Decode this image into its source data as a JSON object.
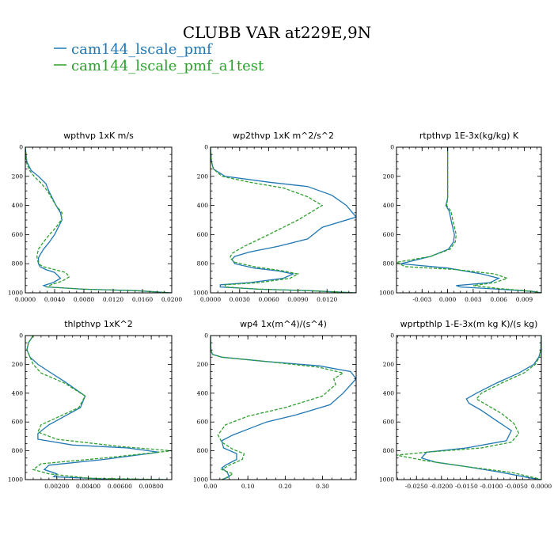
{
  "title": "CLUBB VAR at229E,9N",
  "legend": [
    {
      "label": "cam144_lscale_pmf",
      "color": "#1f77b4",
      "dash": "none"
    },
    {
      "label": "cam144_lscale_pmf_a1test",
      "color": "#2ca02c",
      "dash": "4,2"
    }
  ],
  "chart_data": [
    {
      "type": "line",
      "title": "wpthvp  1xK m/s",
      "xlim": [
        0,
        0.02
      ],
      "ylim": [
        1000,
        0
      ],
      "xticks": [
        0,
        0.004,
        0.008,
        0.012,
        0.016,
        0.02
      ],
      "xticklabels": [
        "0.0000",
        "0.0040",
        "0.0080",
        "0.0120",
        "0.0160",
        "0.0200"
      ],
      "yticks": [
        0,
        200,
        400,
        600,
        800,
        1000
      ],
      "yticklabels": [
        "0",
        "200",
        "400",
        "600",
        "800",
        "1000"
      ],
      "series": [
        {
          "name": "cam144_lscale_pmf",
          "x": [
            0,
            0.0002,
            0.0008,
            0.0018,
            0.0028,
            0.0032,
            0.0042,
            0.0048,
            0.005,
            0.0045,
            0.004,
            0.0033,
            0.0025,
            0.002,
            0.0018,
            0.0018,
            0.002,
            0.0028,
            0.004,
            0.0048,
            0.0038,
            0.0025,
            0.003,
            0.008,
            0.015,
            0.02
          ],
          "y": [
            0,
            100,
            160,
            200,
            250,
            300,
            400,
            450,
            500,
            550,
            600,
            650,
            700,
            740,
            760,
            800,
            820,
            840,
            860,
            900,
            930,
            950,
            960,
            975,
            985,
            1000
          ]
        },
        {
          "name": "cam144_lscale_pmf_a1test",
          "x": [
            0,
            0.0001,
            0.0006,
            0.0012,
            0.0022,
            0.003,
            0.0042,
            0.005,
            0.0049,
            0.0042,
            0.0033,
            0.0025,
            0.0018,
            0.0016,
            0.0016,
            0.0018,
            0.0024,
            0.004,
            0.0055,
            0.006,
            0.005,
            0.0035,
            0.003,
            0.008,
            0.015,
            0.02
          ],
          "y": [
            0,
            100,
            160,
            200,
            250,
            300,
            400,
            450,
            500,
            550,
            600,
            650,
            700,
            740,
            760,
            800,
            820,
            840,
            860,
            890,
            920,
            945,
            960,
            975,
            985,
            1000
          ]
        }
      ]
    },
    {
      "type": "line",
      "title": "wp2thvp  1xK m^2/s^2",
      "xlim": [
        0,
        0.015
      ],
      "ylim": [
        1000,
        0
      ],
      "xticks": [
        0,
        0.003,
        0.006,
        0.009,
        0.012
      ],
      "xticklabels": [
        "0.0000",
        "0.0030",
        "0.0060",
        "0.0090",
        "0.0120"
      ],
      "yticks": [
        0,
        200,
        400,
        600,
        800,
        1000
      ],
      "yticklabels": [
        "0",
        "200",
        "400",
        "600",
        "800",
        "1000"
      ],
      "series": [
        {
          "name": "cam144_lscale_pmf",
          "x": [
            0,
            0.0001,
            0.0003,
            0.0015,
            0.006,
            0.01,
            0.0125,
            0.014,
            0.015,
            0.0115,
            0.01,
            0.007,
            0.004,
            0.0025,
            0.0022,
            0.0025,
            0.0045,
            0.007,
            0.0085,
            0.0075,
            0.004,
            0.001,
            0.001,
            0.005,
            0.01,
            0.015
          ],
          "y": [
            0,
            100,
            150,
            200,
            240,
            270,
            330,
            400,
            480,
            550,
            630,
            680,
            720,
            750,
            770,
            800,
            830,
            850,
            870,
            900,
            930,
            945,
            960,
            975,
            985,
            1000
          ]
        },
        {
          "name": "cam144_lscale_pmf_a1test",
          "x": [
            0,
            0.0001,
            0.0003,
            0.0012,
            0.004,
            0.0075,
            0.01,
            0.0115,
            0.009,
            0.006,
            0.0035,
            0.0022,
            0.002,
            0.0025,
            0.0045,
            0.0075,
            0.009,
            0.0082,
            0.005,
            0.0015,
            0.0015,
            0.005,
            0.01,
            0.015
          ],
          "y": [
            0,
            100,
            150,
            200,
            240,
            280,
            340,
            400,
            500,
            600,
            680,
            730,
            760,
            790,
            820,
            850,
            870,
            900,
            930,
            945,
            960,
            975,
            985,
            1000
          ]
        }
      ]
    },
    {
      "type": "line",
      "title": "rtpthvp  1E-3x(kg/kg) K",
      "xlim": [
        -0.006,
        0.011
      ],
      "ylim": [
        1000,
        0
      ],
      "xticks": [
        -0.003,
        0,
        0.003,
        0.006,
        0.009
      ],
      "xticklabels": [
        "-0.003",
        "0.000",
        "0.003",
        "0.006",
        "0.009"
      ],
      "yticks": [
        0,
        200,
        400,
        600,
        800,
        1000
      ],
      "yticklabels": [
        "0",
        "200",
        "400",
        "600",
        "800",
        "1000"
      ],
      "series": [
        {
          "name": "cam144_lscale_pmf",
          "x": [
            0,
            0,
            0,
            0,
            -0.0002,
            0.0002,
            0.0004,
            0.0006,
            0.0008,
            0.0007,
            0.0001,
            -0.002,
            -0.0055,
            0.0,
            0.004,
            0.006,
            0.005,
            0.001,
            0.0015,
            0.006,
            0.01,
            0.011
          ],
          "y": [
            0,
            100,
            200,
            350,
            400,
            440,
            500,
            550,
            600,
            650,
            700,
            750,
            800,
            830,
            870,
            900,
            930,
            950,
            960,
            975,
            990,
            1000
          ]
        },
        {
          "name": "cam144_lscale_pmf_a1test",
          "x": [
            0,
            0,
            0,
            0,
            -0.0001,
            0.0004,
            0.0006,
            0.0008,
            0.001,
            0.0009,
            0.0003,
            -0.002,
            -0.006,
            -0.005,
            0.001,
            0.0055,
            0.007,
            0.0055,
            0.003,
            0.006,
            0.01,
            0.011
          ],
          "y": [
            0,
            100,
            200,
            350,
            400,
            440,
            500,
            550,
            600,
            650,
            700,
            750,
            790,
            820,
            840,
            870,
            900,
            930,
            950,
            970,
            990,
            1000
          ]
        }
      ]
    },
    {
      "type": "line",
      "title": "thlpthvp   1xK^2",
      "xlim": [
        0,
        0.0093
      ],
      "ylim": [
        1000,
        0
      ],
      "xticks": [
        0.002,
        0.004,
        0.006,
        0.008
      ],
      "xticklabels": [
        "0.00200",
        "0.00400",
        "0.00600",
        "0.00800"
      ],
      "yticks": [
        0,
        200,
        400,
        600,
        800,
        1000
      ],
      "yticklabels": [
        "0",
        "200",
        "400",
        "600",
        "800",
        "1000"
      ],
      "series": [
        {
          "name": "cam144_lscale_pmf",
          "x": [
            0.0005,
            0.0002,
            0.0001,
            0.0003,
            0.0008,
            0.0015,
            0.0025,
            0.0038,
            0.0035,
            0.0025,
            0.0015,
            0.0008,
            0.0008,
            0.003,
            0.0065,
            0.0085,
            0.005,
            0.0015,
            0.0012,
            0.002,
            0.0018,
            0.005,
            0.009
          ],
          "y": [
            0,
            50,
            100,
            150,
            200,
            250,
            320,
            420,
            500,
            560,
            620,
            680,
            720,
            760,
            780,
            810,
            860,
            900,
            930,
            960,
            980,
            995,
            1000
          ]
        },
        {
          "name": "cam144_lscale_pmf_a1test",
          "x": [
            0.0005,
            0.0002,
            0.0001,
            0.0003,
            0.0005,
            0.001,
            0.0025,
            0.0038,
            0.0034,
            0.002,
            0.001,
            0.0008,
            0.002,
            0.006,
            0.0093,
            0.005,
            0.001,
            0.0005,
            0.0015,
            0.004,
            0.009
          ],
          "y": [
            0,
            50,
            100,
            150,
            200,
            260,
            330,
            420,
            500,
            570,
            620,
            670,
            720,
            770,
            800,
            850,
            890,
            930,
            960,
            990,
            1000
          ]
        }
      ]
    },
    {
      "type": "line",
      "title": "wp4   1x(m^4)/(s^4)",
      "xlim": [
        0,
        0.39
      ],
      "ylim": [
        1000,
        0
      ],
      "xticks": [
        0,
        0.1,
        0.2,
        0.3
      ],
      "xticklabels": [
        "0.00",
        "0.10",
        "0.20",
        "0.30"
      ],
      "yticks": [
        0,
        200,
        400,
        600,
        800,
        1000
      ],
      "yticklabels": [
        "0",
        "200",
        "400",
        "600",
        "800",
        "1000"
      ],
      "series": [
        {
          "name": "cam144_lscale_pmf",
          "x": [
            0,
            0.001,
            0.005,
            0.03,
            0.15,
            0.29,
            0.375,
            0.39,
            0.355,
            0.32,
            0.23,
            0.15,
            0.1,
            0.06,
            0.03,
            0.035,
            0.07,
            0.07,
            0.04,
            0.03,
            0.045,
            0.05,
            0.03
          ],
          "y": [
            0,
            100,
            130,
            150,
            180,
            210,
            250,
            300,
            400,
            480,
            550,
            600,
            650,
            690,
            730,
            780,
            820,
            860,
            900,
            920,
            950,
            980,
            1000
          ]
        },
        {
          "name": "cam144_lscale_pmf_a1test",
          "x": [
            0,
            0.001,
            0.005,
            0.03,
            0.15,
            0.29,
            0.355,
            0.33,
            0.335,
            0.3,
            0.2,
            0.1,
            0.04,
            0.02,
            0.03,
            0.06,
            0.09,
            0.085,
            0.05,
            0.03,
            0.06,
            0.04,
            0.03
          ],
          "y": [
            0,
            100,
            130,
            150,
            180,
            220,
            260,
            300,
            340,
            420,
            500,
            560,
            620,
            690,
            740,
            790,
            820,
            860,
            900,
            930,
            960,
            990,
            1000
          ]
        }
      ]
    },
    {
      "type": "line",
      "title": "wprtpthlp   1-E-3x(m kg K)/(s kg)",
      "xlim": [
        -0.029,
        0
      ],
      "ylim": [
        1000,
        0
      ],
      "xticks": [
        -0.025,
        -0.02,
        -0.015,
        -0.01,
        -0.005,
        0
      ],
      "xticklabels": [
        "-0.0250",
        "-0.0200",
        "-0.0150",
        "-0.0100",
        "-0.0050",
        "0.0000"
      ],
      "yticks": [
        0,
        200,
        400,
        600,
        800,
        1000
      ],
      "yticklabels": [
        "0",
        "200",
        "400",
        "600",
        "800",
        "1000"
      ],
      "series": [
        {
          "name": "cam144_lscale_pmf",
          "x": [
            0,
            -0.0001,
            -0.0005,
            -0.0015,
            -0.0045,
            -0.009,
            -0.013,
            -0.015,
            -0.0145,
            -0.012,
            -0.009,
            -0.006,
            -0.007,
            -0.015,
            -0.023,
            -0.024,
            -0.021,
            -0.015,
            -0.008,
            -0.002,
            0
          ],
          "y": [
            0,
            100,
            150,
            200,
            260,
            330,
            400,
            440,
            470,
            520,
            590,
            660,
            730,
            780,
            810,
            850,
            880,
            910,
            950,
            990,
            1000
          ]
        },
        {
          "name": "cam144_lscale_pmf_a1test",
          "x": [
            0,
            -0.0001,
            -0.0004,
            -0.0012,
            -0.0035,
            -0.008,
            -0.012,
            -0.013,
            -0.011,
            -0.008,
            -0.0055,
            -0.0045,
            -0.006,
            -0.012,
            -0.023,
            -0.029,
            -0.023,
            -0.015,
            -0.006,
            -0.001,
            0
          ],
          "y": [
            0,
            100,
            150,
            200,
            260,
            330,
            400,
            440,
            480,
            540,
            610,
            680,
            740,
            780,
            810,
            830,
            870,
            910,
            950,
            990,
            1000
          ]
        }
      ]
    }
  ]
}
